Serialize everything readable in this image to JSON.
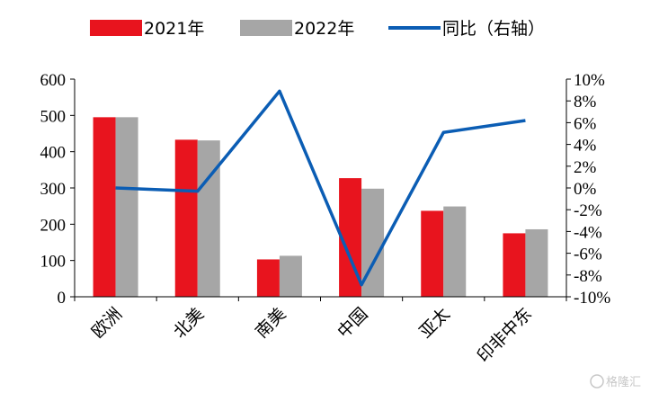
{
  "chart_data": {
    "type": "bar",
    "categories": [
      "欧洲",
      "北美",
      "南美",
      "中国",
      "亚太",
      "印非中东"
    ],
    "series": [
      {
        "name": "2021年",
        "kind": "bar",
        "axis": "left",
        "color": "#e8141e",
        "values": [
          495,
          433,
          103,
          327,
          237,
          175
        ]
      },
      {
        "name": "2022年",
        "kind": "bar",
        "axis": "left",
        "color": "#a6a6a6",
        "values": [
          495,
          431,
          113,
          298,
          249,
          186
        ]
      },
      {
        "name": "同比（右轴）",
        "kind": "line",
        "axis": "right",
        "color": "#0b5db4",
        "values": [
          0.0,
          -0.3,
          8.9,
          -8.9,
          5.1,
          6.2
        ]
      }
    ],
    "ylim": [
      0,
      600
    ],
    "y_ticks": [
      "0",
      "100",
      "200",
      "300",
      "400",
      "500",
      "600"
    ],
    "y2lim": [
      -10,
      10
    ],
    "y2_ticks": [
      "-10%",
      "-8%",
      "-6%",
      "-4%",
      "-2%",
      "0%",
      "2%",
      "4%",
      "6%",
      "8%",
      "10%"
    ],
    "grid": false,
    "legend_position": "top"
  },
  "watermark": {
    "text": "格隆汇",
    "icon": "glh-logo-icon"
  }
}
